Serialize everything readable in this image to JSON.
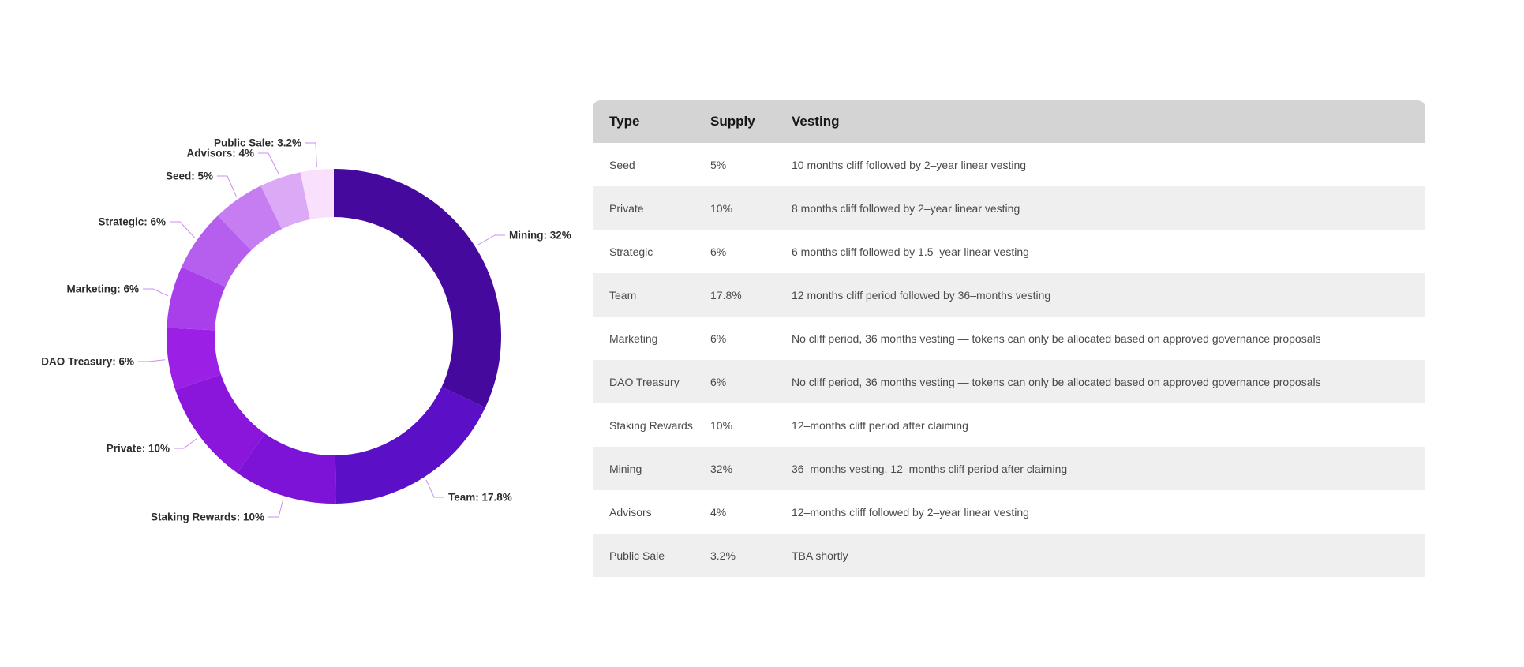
{
  "chart_data": {
    "type": "pie",
    "subtype": "donut",
    "direction": "clockwise",
    "start_angle_deg": 0,
    "inner_radius_ratio": 0.71,
    "label_format": "{name}: {value}%",
    "label_text_color": "#2d2d2d",
    "leader_line_color": "#c98df0",
    "slices": [
      {
        "name": "Mining",
        "value": 32,
        "label": "Mining: 32%",
        "color": "#46099D"
      },
      {
        "name": "Team",
        "value": 17.8,
        "label": "Team: 17.8%",
        "color": "#5B0FC6"
      },
      {
        "name": "Staking Rewards",
        "value": 10,
        "label": "Staking Rewards: 10%",
        "color": "#7D13D6"
      },
      {
        "name": "Private",
        "value": 10,
        "label": "Private: 10%",
        "color": "#8A16DC"
      },
      {
        "name": "DAO Treasury",
        "value": 6,
        "label": "DAO Treasury: 6%",
        "color": "#9B1FE4"
      },
      {
        "name": "Marketing",
        "value": 6,
        "label": "Marketing: 6%",
        "color": "#A93EEB"
      },
      {
        "name": "Strategic",
        "value": 6,
        "label": "Strategic: 6%",
        "color": "#B65FEF"
      },
      {
        "name": "Seed",
        "value": 5,
        "label": "Seed: 5%",
        "color": "#C67DF2"
      },
      {
        "name": "Advisors",
        "value": 4,
        "label": "Advisors: 4%",
        "color": "#DCA9F6"
      },
      {
        "name": "Public Sale",
        "value": 3.2,
        "label": "Public Sale: 3.2%",
        "color": "#F9E0FC"
      }
    ]
  },
  "table": {
    "header_bg": "#d4d4d4",
    "alt_row_bg": "#efefef",
    "columns": [
      "Type",
      "Supply",
      "Vesting"
    ],
    "rows": [
      [
        "Seed",
        "5%",
        "10 months cliff followed by 2–year linear vesting"
      ],
      [
        "Private",
        "10%",
        "8 months cliff followed by 2–year linear vesting"
      ],
      [
        "Strategic",
        "6%",
        "6 months cliff followed by 1.5–year linear vesting"
      ],
      [
        "Team",
        "17.8%",
        "12 months cliff period followed by 36–months vesting"
      ],
      [
        "Marketing",
        "6%",
        "No cliff period, 36 months vesting — tokens can only be allocated based on approved governance proposals"
      ],
      [
        "DAO Treasury",
        "6%",
        "No cliff period, 36 months vesting — tokens can only be allocated based on approved governance proposals"
      ],
      [
        "Staking Rewards",
        "10%",
        "12–months cliff period after claiming"
      ],
      [
        "Mining",
        "32%",
        "36–months vesting, 12–months cliff period after claiming"
      ],
      [
        "Advisors",
        "4%",
        "12–months cliff followed by 2–year linear vesting"
      ],
      [
        "Public Sale",
        "3.2%",
        "TBA shortly"
      ]
    ]
  }
}
